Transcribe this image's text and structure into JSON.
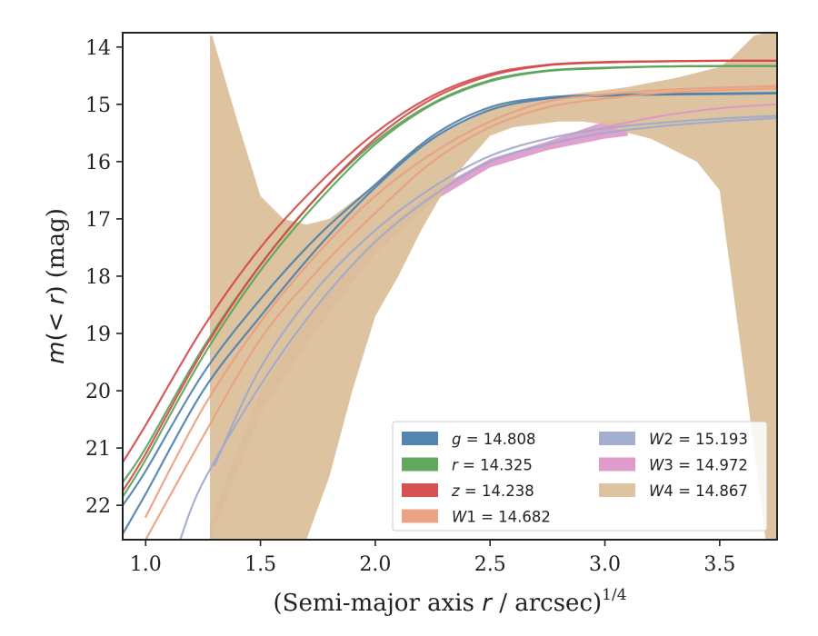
{
  "chart_data": {
    "type": "area",
    "xlabel_main": "(Semi-major axis ",
    "xlabel_var": "r",
    "xlabel_unit": " / arcsec)",
    "xlabel_sup": "1/4",
    "ylabel_main": "m",
    "ylabel_paren": "(< ",
    "ylabel_var": "r",
    "ylabel_rest": ") (mag)",
    "xlim": [
      0.9,
      3.75
    ],
    "ylim": [
      22.6,
      13.75
    ],
    "xticks": [
      1.0,
      1.5,
      2.0,
      2.5,
      3.0,
      3.5
    ],
    "xtick_labels": [
      "1.0",
      "1.5",
      "2.0",
      "2.5",
      "3.0",
      "3.5"
    ],
    "yticks": [
      14,
      15,
      16,
      17,
      18,
      19,
      20,
      21,
      22
    ],
    "ytick_labels": [
      "14",
      "15",
      "16",
      "17",
      "18",
      "19",
      "20",
      "21",
      "22"
    ],
    "y_inverted": true,
    "legend_placement": "lower-right",
    "series": [
      {
        "name": "g",
        "legend_var": "g",
        "legend_value": " = 14.808",
        "color": "#4c7fad",
        "curves": [
          {
            "x": [
              0.9,
              1.0,
              1.25,
              1.5,
              1.75,
              2.0,
              2.25,
              2.5,
              2.75,
              3.0,
              3.25,
              3.5,
              3.75
            ],
            "y": [
              22.5,
              21.8,
              20.0,
              18.7,
              17.5,
              16.45,
              15.6,
              15.1,
              14.9,
              14.85,
              14.83,
              14.82,
              14.81
            ]
          },
          {
            "x": [
              0.9,
              1.0,
              1.25,
              1.5,
              1.75,
              2.0,
              2.25,
              2.5,
              2.75,
              3.0,
              3.25,
              3.5,
              3.75
            ],
            "y": [
              22.0,
              21.4,
              19.7,
              18.4,
              17.3,
              16.4,
              15.55,
              15.05,
              14.88,
              14.84,
              14.82,
              14.81,
              14.8
            ]
          }
        ]
      },
      {
        "name": "r",
        "legend_var": "r",
        "legend_value": " = 14.325",
        "color": "#5aa356",
        "curves": [
          {
            "x": [
              0.9,
              1.0,
              1.25,
              1.5,
              1.75,
              2.0,
              2.25,
              2.5,
              2.75,
              3.0,
              3.25,
              3.5,
              3.75
            ],
            "y": [
              21.85,
              21.2,
              19.4,
              17.9,
              16.7,
              15.7,
              15.0,
              14.6,
              14.42,
              14.37,
              14.34,
              14.33,
              14.33
            ]
          },
          {
            "x": [
              0.9,
              1.0,
              1.25,
              1.5,
              1.75,
              2.0,
              2.25,
              2.5,
              2.75,
              3.0,
              3.25,
              3.5,
              3.75
            ],
            "y": [
              21.6,
              21.0,
              19.25,
              17.8,
              16.6,
              15.65,
              14.98,
              14.58,
              14.41,
              14.36,
              14.34,
              14.33,
              14.33
            ]
          }
        ]
      },
      {
        "name": "z",
        "legend_var": "z",
        "legend_value": " = 14.238",
        "color": "#d44848",
        "curves": [
          {
            "x": [
              0.9,
              1.0,
              1.25,
              1.5,
              1.75,
              2.0,
              2.25,
              2.5,
              2.75,
              3.0,
              3.25,
              3.5,
              3.75
            ],
            "y": [
              21.75,
              21.1,
              19.3,
              17.8,
              16.6,
              15.6,
              14.9,
              14.5,
              14.32,
              14.27,
              14.25,
              14.24,
              14.24
            ]
          },
          {
            "x": [
              0.9,
              1.0,
              1.25,
              1.5,
              1.75,
              2.0,
              2.25,
              2.5,
              2.75,
              3.0,
              3.25,
              3.5,
              3.75
            ],
            "y": [
              21.25,
              20.6,
              18.9,
              17.5,
              16.4,
              15.5,
              14.85,
              14.47,
              14.31,
              14.26,
              14.25,
              14.24,
              14.24
            ]
          }
        ]
      },
      {
        "name": "W1",
        "legend_var": "W",
        "legend_sub": "1",
        "legend_value": " = 14.682",
        "color": "#eb9f7e",
        "curves": [
          {
            "x": [
              1.0,
              1.25,
              1.5,
              1.75,
              2.0,
              2.25,
              2.5,
              2.75,
              3.0,
              3.25,
              3.5,
              3.75
            ],
            "y": [
              22.6,
              20.8,
              19.1,
              17.9,
              16.9,
              16.0,
              15.4,
              15.05,
              14.9,
              14.8,
              14.75,
              14.72
            ]
          },
          {
            "x": [
              1.0,
              1.25,
              1.5,
              1.75,
              2.0,
              2.25,
              2.5,
              2.75,
              3.0,
              3.25,
              3.5,
              3.75
            ],
            "y": [
              22.2,
              20.3,
              18.8,
              17.6,
              16.6,
              15.85,
              15.3,
              14.95,
              14.83,
              14.75,
              14.71,
              14.68
            ]
          }
        ]
      },
      {
        "name": "W2",
        "legend_var": "W",
        "legend_sub": "2",
        "legend_value": " = 15.193",
        "color": "#9faacb",
        "curves": [
          {
            "x": [
              1.15,
              1.25,
              1.5,
              1.75,
              2.0,
              2.25,
              2.5,
              2.75,
              3.0,
              3.25,
              3.5,
              3.75
            ],
            "y": [
              22.6,
              21.6,
              19.9,
              18.5,
              17.4,
              16.6,
              16.0,
              15.7,
              15.5,
              15.38,
              15.3,
              15.24
            ]
          },
          {
            "x": [
              1.3,
              1.5,
              1.75,
              2.0,
              2.25,
              2.5,
              2.75,
              3.0,
              3.25,
              3.5,
              3.75
            ],
            "y": [
              21.3,
              19.6,
              18.2,
              17.2,
              16.45,
              15.9,
              15.6,
              15.42,
              15.32,
              15.25,
              15.2
            ]
          }
        ]
      },
      {
        "name": "W3",
        "legend_var": "W",
        "legend_sub": "3",
        "legend_value": " = 14.972",
        "color": "#de96c8",
        "band_x": [
          1.28,
          1.5,
          1.75,
          2.0,
          2.25,
          2.5,
          2.75,
          3.0,
          3.1
        ],
        "band_upper": [
          22.3,
          20.0,
          18.5,
          17.3,
          16.5,
          15.95,
          15.65,
          15.3,
          15.25
        ],
        "band_lower": [
          22.6,
          20.4,
          18.9,
          17.6,
          16.7,
          16.1,
          15.8,
          15.6,
          15.55
        ],
        "curves": [
          {
            "x": [
              3.0,
              3.25,
              3.5,
              3.75
            ],
            "y": [
              15.4,
              15.2,
              15.07,
              15.0
            ]
          }
        ]
      },
      {
        "name": "W4",
        "legend_var": "W",
        "legend_sub": "4",
        "legend_value": " = 14.867",
        "color": "#dbc09a",
        "band_x": [
          1.28,
          1.29,
          1.4,
          1.5,
          1.6,
          1.7,
          1.8,
          1.9,
          2.0,
          2.1,
          2.2,
          2.3,
          2.4,
          2.5,
          2.6,
          2.7,
          2.8,
          2.9,
          3.0,
          3.1,
          3.2,
          3.3,
          3.4,
          3.5,
          3.55,
          3.6,
          3.65,
          3.7,
          3.75
        ],
        "band_upper": [
          13.8,
          13.8,
          15.3,
          16.6,
          17.0,
          17.1,
          17.0,
          16.7,
          16.4,
          16.0,
          15.7,
          15.45,
          15.25,
          15.05,
          14.95,
          14.9,
          14.85,
          14.8,
          14.75,
          14.7,
          14.62,
          14.55,
          14.45,
          14.35,
          14.2,
          14.0,
          13.8,
          13.75,
          13.75
        ],
        "band_lower": [
          22.6,
          22.6,
          22.6,
          22.6,
          22.6,
          22.6,
          21.5,
          20.0,
          18.7,
          18.0,
          17.2,
          16.5,
          16.0,
          15.55,
          15.4,
          15.35,
          15.3,
          15.3,
          15.35,
          15.5,
          15.6,
          15.8,
          16.0,
          16.5,
          18.0,
          19.5,
          21.0,
          22.6,
          22.6
        ]
      }
    ]
  }
}
